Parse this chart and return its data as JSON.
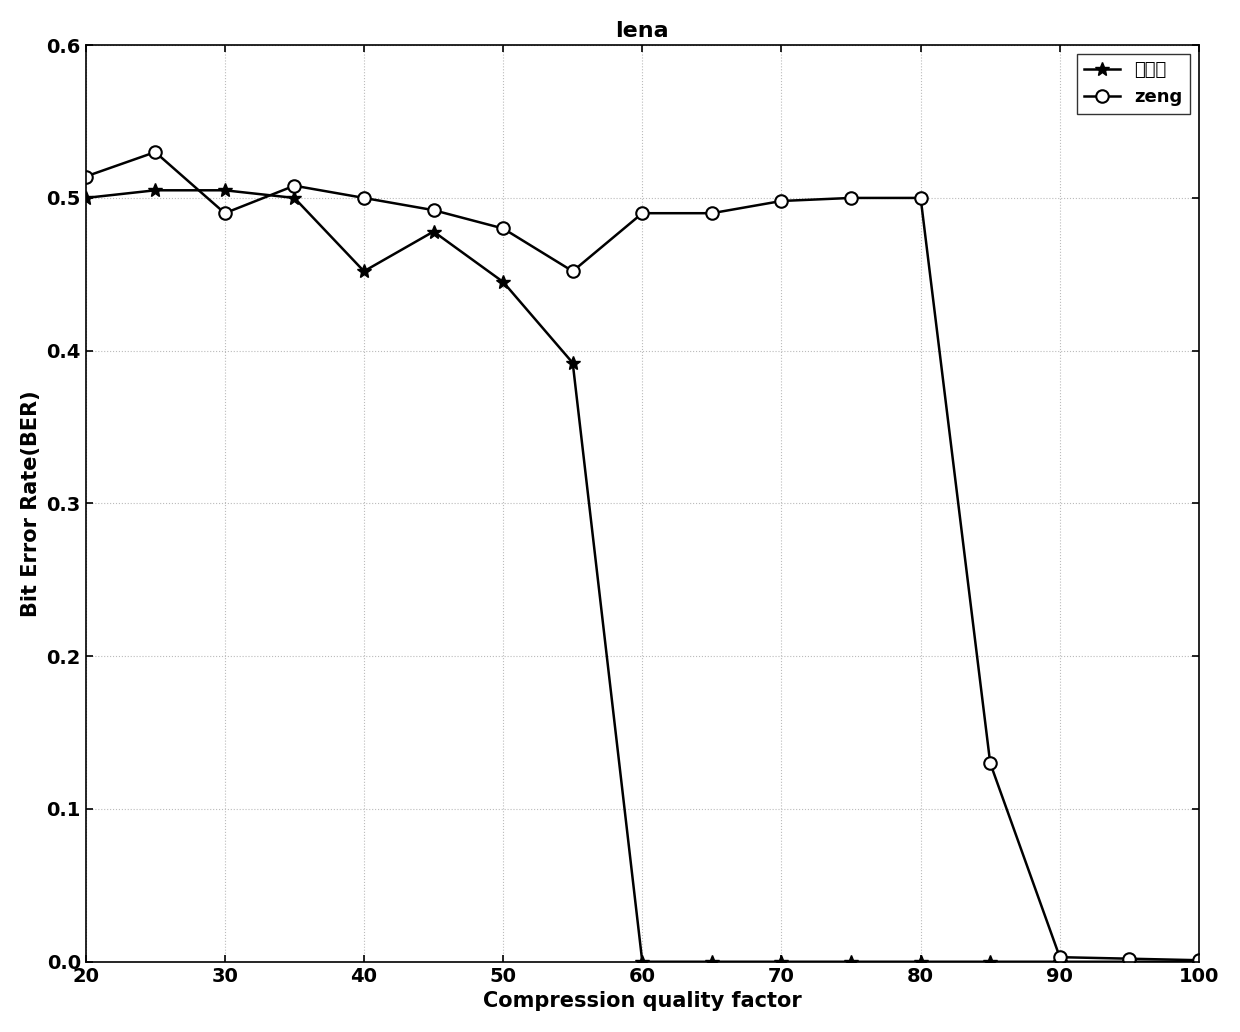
{
  "title": "lena",
  "xlabel": "Compression quality factor",
  "ylabel": "Bit Error Rate(BER)",
  "xlim": [
    20,
    100
  ],
  "ylim": [
    0,
    0.6
  ],
  "xticks": [
    20,
    30,
    40,
    50,
    60,
    70,
    80,
    90,
    100
  ],
  "yticks": [
    0,
    0.1,
    0.2,
    0.3,
    0.4,
    0.5,
    0.6
  ],
  "series1_label": "本方案",
  "series1_x": [
    20,
    25,
    30,
    35,
    40,
    45,
    50,
    55,
    60,
    65,
    70,
    75,
    80,
    85,
    90,
    95,
    100
  ],
  "series1_y": [
    0.5,
    0.505,
    0.505,
    0.5,
    0.452,
    0.478,
    0.445,
    0.392,
    0.0,
    0.0,
    0.0,
    0.0,
    0.0,
    0.0,
    0.0,
    0.0,
    0.0
  ],
  "series2_label": "zeng",
  "series2_x": [
    20,
    25,
    30,
    35,
    40,
    45,
    50,
    55,
    60,
    65,
    70,
    75,
    80,
    85,
    90,
    95,
    100
  ],
  "series2_y": [
    0.514,
    0.53,
    0.49,
    0.508,
    0.5,
    0.492,
    0.48,
    0.452,
    0.49,
    0.49,
    0.498,
    0.5,
    0.5,
    0.13,
    0.003,
    0.002,
    0.001
  ],
  "line_color": "#000000",
  "bg_color": "#ffffff",
  "grid_color": "#aaaaaa"
}
